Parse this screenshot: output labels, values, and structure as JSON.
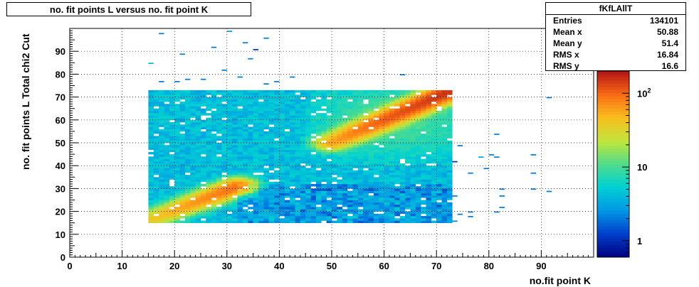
{
  "chart_data": {
    "type": "heatmap",
    "title": "no. fit points L versus no. fit point K",
    "xlabel": "no.fit point K",
    "ylabel": "no. fit points  L  Total chi2 Cut",
    "xlim": [
      0,
      100
    ],
    "ylim": [
      0,
      100
    ],
    "xticks": [
      "0",
      "10",
      "20",
      "30",
      "40",
      "50",
      "60",
      "70",
      "80",
      "90"
    ],
    "yticks": [
      "0",
      "10",
      "20",
      "30",
      "40",
      "50",
      "60",
      "70",
      "80",
      "90"
    ],
    "grid": true,
    "colorbar": {
      "scale": "log",
      "range": [
        0.6,
        200
      ],
      "ticks": [
        {
          "value": 1,
          "label": "1"
        },
        {
          "value": 10,
          "label": "10"
        },
        {
          "value": 100,
          "label": "10",
          "sup": "2"
        }
      ]
    },
    "stats": {
      "name": "fKfLAllT",
      "rows": [
        {
          "label": "Entries",
          "value": "134101"
        },
        {
          "label": "Mean x",
          "value": "50.88"
        },
        {
          "label": "Mean y",
          "value": "51.4"
        },
        {
          "label": "RMS x",
          "value": "16.84"
        },
        {
          "label": "RMS y",
          "value": "16.6"
        }
      ]
    },
    "main_region": {
      "x": [
        15,
        73
      ],
      "y": [
        15,
        73
      ]
    },
    "ridges": [
      {
        "from": [
          15,
          16
        ],
        "to": [
          32,
          31
        ],
        "peak": 90
      },
      {
        "from": [
          50,
          50
        ],
        "to": [
          72,
          72
        ],
        "peak": 150
      }
    ],
    "sparse_points": [
      [
        17,
        97,
        2
      ],
      [
        30,
        98,
        3
      ],
      [
        37,
        95,
        2
      ],
      [
        27,
        91,
        2
      ],
      [
        33,
        93,
        2
      ],
      [
        35,
        90,
        1
      ],
      [
        21,
        88,
        2
      ],
      [
        34,
        86,
        2
      ],
      [
        15,
        84,
        4
      ],
      [
        29,
        81,
        2
      ],
      [
        32,
        78,
        2
      ],
      [
        63,
        79,
        2
      ],
      [
        42,
        78,
        2
      ],
      [
        17,
        76,
        2
      ],
      [
        22,
        77,
        2
      ],
      [
        25,
        77,
        2
      ],
      [
        20,
        76,
        2
      ],
      [
        37,
        75,
        2
      ],
      [
        39,
        76,
        2
      ],
      [
        91,
        69,
        2
      ],
      [
        81,
        53,
        2
      ],
      [
        74,
        48,
        2
      ],
      [
        78,
        43,
        3
      ],
      [
        80,
        44,
        2
      ],
      [
        81,
        43,
        2
      ],
      [
        88,
        44,
        2
      ],
      [
        73,
        41,
        1
      ],
      [
        79,
        38,
        2
      ],
      [
        76,
        36,
        2
      ],
      [
        88,
        36,
        2
      ],
      [
        82,
        29,
        2
      ],
      [
        88,
        29,
        2
      ],
      [
        91,
        28,
        2
      ],
      [
        82,
        26,
        2
      ],
      [
        73,
        26,
        2
      ],
      [
        82,
        21,
        2
      ],
      [
        81,
        19,
        2
      ],
      [
        76,
        19,
        2
      ],
      [
        74,
        18,
        2
      ],
      [
        76,
        17,
        2
      ],
      [
        73,
        15,
        2
      ]
    ]
  }
}
